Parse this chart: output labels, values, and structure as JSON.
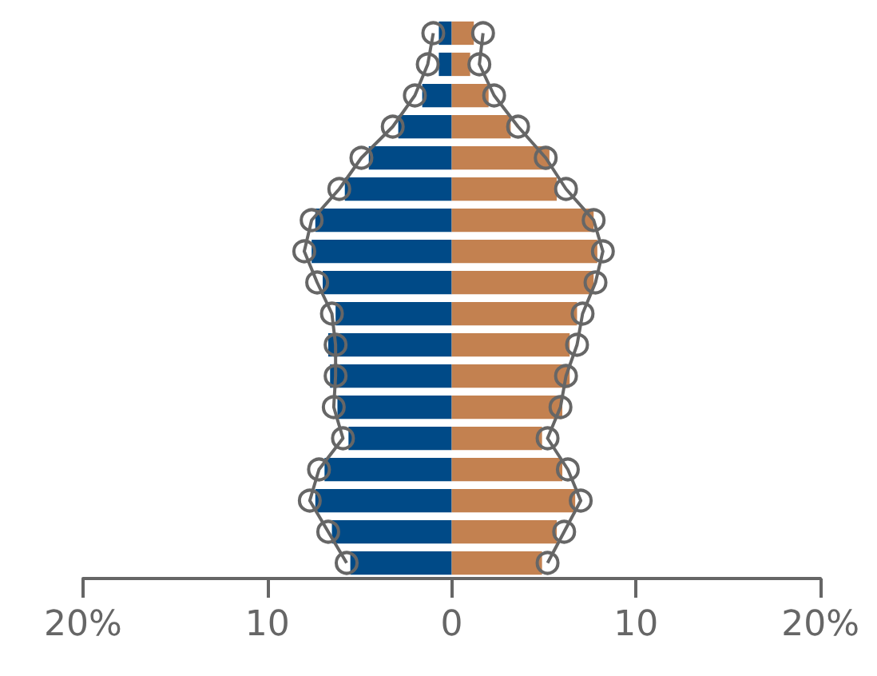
{
  "chart_data": {
    "type": "bar",
    "orientation": "horizontal",
    "stacked": true,
    "tick_labels": "x",
    "categories": [
      null,
      null,
      null,
      null,
      null,
      null,
      null,
      null,
      null,
      null,
      null,
      null,
      null,
      null,
      null,
      null,
      null,
      null
    ],
    "xlim": [
      -20,
      20
    ],
    "xticks": [
      {
        "value": -20,
        "label": "20%"
      },
      {
        "value": -10,
        "label": "10"
      },
      0,
      10,
      {
        "value": 20,
        "label": "20%"
      }
    ],
    "series": [
      {
        "color": "#004a87",
        "values": [
          -0.7,
          -0.7,
          -1.6,
          -2.9,
          -4.5,
          -5.8,
          -7.4,
          -7.6,
          -7.0,
          -6.3,
          -6.7,
          -6.6,
          -6.2,
          -5.6,
          -6.9,
          -7.4,
          -6.5,
          -5.5
        ]
      },
      {
        "color": "#c38150",
        "values": [
          1.2,
          1.0,
          2.0,
          3.2,
          5.3,
          5.7,
          7.7,
          7.9,
          7.7,
          6.8,
          6.4,
          6.4,
          6.0,
          4.9,
          6.0,
          6.7,
          5.7,
          4.9
        ]
      },
      {
        "type": "line",
        "marker": "circle",
        "color": "#666666",
        "values": [
          -1.0,
          -1.3,
          -2.0,
          -3.2,
          -4.9,
          -6.1,
          -7.6,
          -8.0,
          -7.3,
          -6.5,
          -6.3,
          -6.3,
          -6.4,
          -5.9,
          -7.2,
          -7.7,
          -6.7,
          -5.7
        ]
      },
      {
        "type": "line",
        "marker": "circle",
        "color": "#666666",
        "values": [
          1.7,
          1.5,
          2.3,
          3.6,
          5.1,
          6.2,
          7.7,
          8.2,
          7.8,
          7.1,
          6.8,
          6.2,
          5.9,
          5.2,
          6.3,
          7.0,
          6.1,
          5.2
        ]
      }
    ]
  }
}
